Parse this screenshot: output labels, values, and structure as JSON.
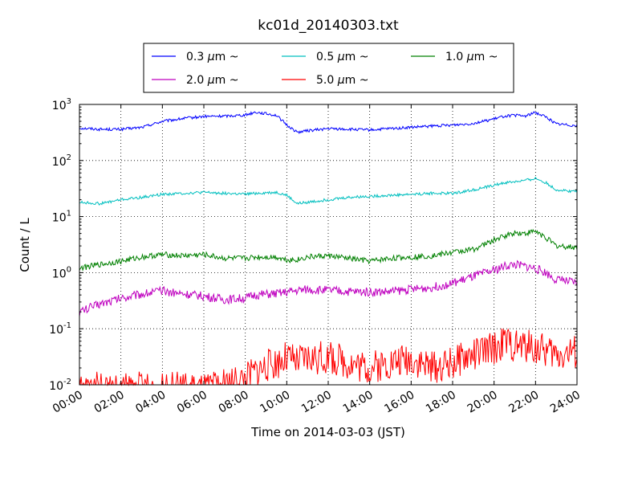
{
  "chart_data": {
    "type": "line",
    "title": "kc01d_20140303.txt",
    "xlabel": "Time on 2014-03-03 (JST)",
    "ylabel": "Count / L",
    "yscale": "log",
    "xlim": [
      "00:00",
      "24:00"
    ],
    "ylim": [
      0.01,
      1000
    ],
    "grid": true,
    "legend_position": "top-center, outside plot",
    "x_ticks": [
      "00:00",
      "02:00",
      "04:00",
      "06:00",
      "08:00",
      "10:00",
      "12:00",
      "14:00",
      "16:00",
      "18:00",
      "20:00",
      "22:00",
      "24:00"
    ],
    "y_ticks": [
      {
        "base": "10",
        "exp": "-2"
      },
      {
        "base": "10",
        "exp": "-1"
      },
      {
        "base": "10",
        "exp": "0"
      },
      {
        "base": "10",
        "exp": "1"
      },
      {
        "base": "10",
        "exp": "2"
      },
      {
        "base": "10",
        "exp": "3"
      }
    ],
    "x": [
      "00:00",
      "01:00",
      "02:00",
      "03:00",
      "04:00",
      "05:00",
      "06:00",
      "07:00",
      "08:00",
      "08:30",
      "09:30",
      "10:00",
      "10:30",
      "11:00",
      "12:00",
      "13:00",
      "14:00",
      "15:00",
      "16:00",
      "17:00",
      "18:00",
      "19:00",
      "20:00",
      "20:30",
      "21:00",
      "21:30",
      "22:00",
      "22:30",
      "23:00",
      "24:00"
    ],
    "series": [
      {
        "name": "0.3 μm ~",
        "name_prefix": "0.3 ",
        "name_mu": "μ",
        "name_suffix": "m ~",
        "color": "#0000ff",
        "values": [
          380,
          360,
          360,
          390,
          500,
          560,
          610,
          620,
          650,
          730,
          640,
          430,
          320,
          340,
          370,
          360,
          350,
          370,
          390,
          410,
          430,
          460,
          550,
          620,
          640,
          620,
          720,
          600,
          450,
          420
        ]
      },
      {
        "name": "0.5 μm ~",
        "name_prefix": "0.5 ",
        "name_mu": "μ",
        "name_suffix": "m ~",
        "color": "#00bfbf",
        "values": [
          18,
          17,
          20,
          22,
          25,
          26,
          27,
          26,
          25,
          26,
          27,
          24,
          17,
          18,
          20,
          22,
          23,
          24,
          25,
          26,
          26,
          30,
          36,
          40,
          42,
          44,
          48,
          40,
          30,
          28
        ]
      },
      {
        "name": "1.0 μm ~",
        "name_prefix": "1.0 ",
        "name_mu": "μ",
        "name_suffix": "m ~",
        "color": "#008000",
        "values": [
          1.2,
          1.4,
          1.6,
          1.9,
          2.1,
          2.0,
          2.1,
          1.8,
          1.8,
          1.9,
          1.9,
          1.7,
          1.7,
          1.9,
          2.0,
          1.8,
          1.6,
          1.8,
          1.9,
          2.0,
          2.3,
          2.6,
          3.8,
          4.5,
          5.2,
          5.0,
          5.5,
          4.2,
          3.0,
          2.8
        ]
      },
      {
        "name": "2.0 μm ~",
        "name_prefix": "2.0 ",
        "name_mu": "μ",
        "name_suffix": "m ~",
        "color": "#bf00bf",
        "values": [
          0.2,
          0.28,
          0.35,
          0.42,
          0.47,
          0.42,
          0.38,
          0.33,
          0.35,
          0.4,
          0.42,
          0.45,
          0.48,
          0.5,
          0.48,
          0.46,
          0.45,
          0.46,
          0.5,
          0.55,
          0.65,
          0.85,
          1.1,
          1.3,
          1.4,
          1.3,
          1.2,
          1.0,
          0.75,
          0.65
        ]
      },
      {
        "name": "5.0 μm ~",
        "name_prefix": "5.0 ",
        "name_mu": "μ",
        "name_suffix": "m ~",
        "color": "#ff0000",
        "values": [
          0.008,
          0.009,
          0.008,
          0.009,
          0.008,
          0.009,
          0.008,
          0.01,
          0.013,
          0.018,
          0.025,
          0.03,
          0.025,
          0.03,
          0.03,
          0.025,
          0.02,
          0.025,
          0.03,
          0.02,
          0.025,
          0.035,
          0.045,
          0.06,
          0.05,
          0.05,
          0.045,
          0.04,
          0.035,
          0.04
        ]
      }
    ]
  }
}
